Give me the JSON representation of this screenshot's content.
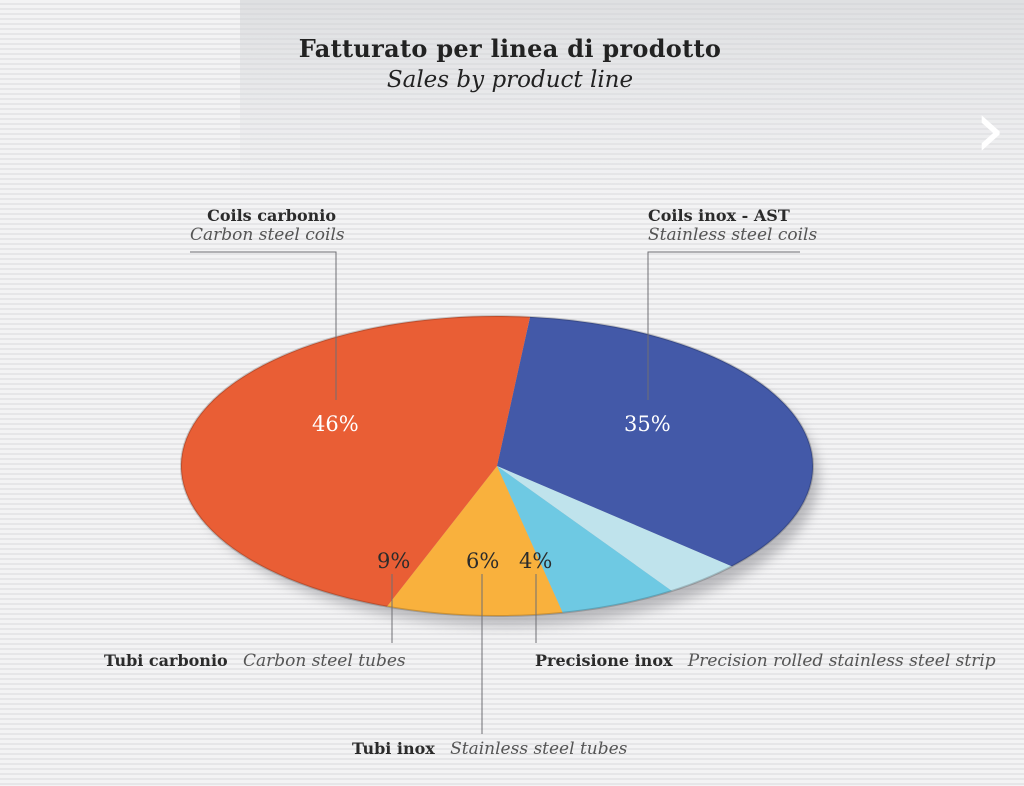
{
  "page": {
    "title": "Fatturato per linea di prodotto",
    "subtitle": "Sales by product line",
    "next_icon": "chevron-right-icon"
  },
  "chart_data": {
    "type": "pie",
    "title": "Fatturato per linea di prodotto",
    "subtitle": "Sales by product line",
    "start_at": "top-right, clockwise",
    "slices": [
      {
        "label": "Coils inox - AST",
        "label_en": "Stainless steel coils",
        "value": 35,
        "display": "35%",
        "color": "#4359a8",
        "pct_color": "#ffffff"
      },
      {
        "label": "Precisione inox",
        "label_en": "Precision rolled stainless steel strip",
        "value": 4,
        "display": "4%",
        "color": "#bfe3ec",
        "pct_color": "#2b2b2b"
      },
      {
        "label": "Tubi inox",
        "label_en": "Stainless steel tubes",
        "value": 6,
        "display": "6%",
        "color": "#6ec9e3",
        "pct_color": "#2b2b2b"
      },
      {
        "label": "Tubi carbonio",
        "label_en": "Carbon steel tubes",
        "value": 9,
        "display": "9%",
        "color": "#f9b13d",
        "pct_color": "#2b2b2b"
      },
      {
        "label": "Coils carbonio",
        "label_en": "Carbon steel coils",
        "value": 46,
        "display": "46%",
        "color": "#e95e35",
        "pct_color": "#ffffff"
      }
    ]
  }
}
